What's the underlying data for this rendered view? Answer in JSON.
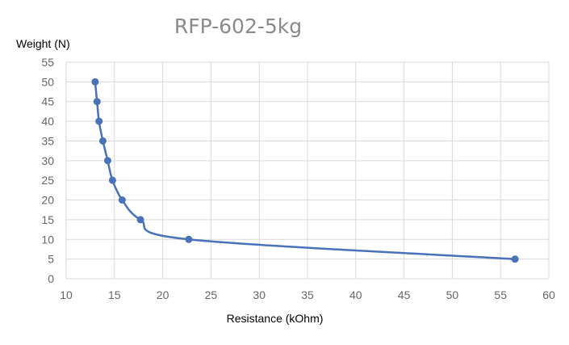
{
  "chart_data": {
    "type": "scatter",
    "title": "RFP-602-5kg",
    "xlabel": "Resistance (kOhm)",
    "ylabel": "Weight (N)",
    "xlim": [
      10,
      60
    ],
    "ylim": [
      0,
      55
    ],
    "xticks": [
      "10",
      "15",
      "20",
      "25",
      "30",
      "35",
      "40",
      "45",
      "50",
      "55",
      "60"
    ],
    "yticks": [
      "0",
      "5",
      "10",
      "15",
      "20",
      "25",
      "30",
      "35",
      "40",
      "45",
      "50",
      "55"
    ],
    "grid": true,
    "line_style": "smooth",
    "series": [
      {
        "color": "#4a72b8",
        "x": [
          56.5,
          22.7,
          17.7,
          15.8,
          14.8,
          14.3,
          13.8,
          13.4,
          13.2,
          13.0
        ],
        "y": [
          5,
          10,
          15,
          20,
          25,
          30,
          35,
          40,
          45,
          50
        ]
      }
    ]
  }
}
